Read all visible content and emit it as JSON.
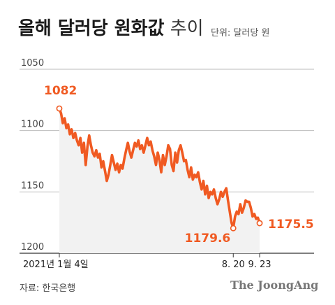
{
  "title_bold": "올해 달러당 원화값",
  "title_light": "추이",
  "unit": "단위: 달러당 원",
  "source": "자료: 한국은행",
  "brand": "The JoongAng",
  "colors": {
    "line": "#f05a22",
    "fill": "#f2f2f2",
    "grid": "#bbbbbb",
    "axis": "#333333"
  },
  "chart_data": {
    "type": "area",
    "ylabel": "",
    "xlabel": "",
    "ylim": [
      1050,
      1200
    ],
    "y_reversed": true,
    "yticks": [
      1050,
      1100,
      1150,
      1200
    ],
    "ytick_labels": [
      "1050",
      "1100",
      "1150",
      "1200"
    ],
    "xtick_labels": [
      "2021년 1월 4일",
      "8. 20",
      "9. 23"
    ],
    "annotations": [
      {
        "date": "2021-01-04",
        "value": 1082,
        "label": "1082"
      },
      {
        "date": "2021-08-20",
        "value": 1179.6,
        "label": "1179.6"
      },
      {
        "date": "2021-09-23",
        "value": 1175.5,
        "label": "1175.5"
      }
    ],
    "series": [
      {
        "values": [
          1082,
          1086,
          1094,
          1090,
          1098,
          1095,
          1103,
          1099,
          1106,
          1102,
          1108,
          1112,
          1106,
          1118,
          1110,
          1128,
          1113,
          1104,
          1112,
          1118,
          1121,
          1116,
          1122,
          1119,
          1130,
          1125,
          1133,
          1141,
          1136,
          1128,
          1120,
          1126,
          1132,
          1127,
          1134,
          1128,
          1131,
          1123,
          1116,
          1110,
          1117,
          1122,
          1116,
          1110,
          1113,
          1108,
          1115,
          1112,
          1118,
          1112,
          1106,
          1112,
          1109,
          1116,
          1121,
          1128,
          1118,
          1124,
          1134,
          1120,
          1128,
          1121,
          1112,
          1115,
          1128,
          1133,
          1118,
          1126,
          1116,
          1112,
          1118,
          1125,
          1124,
          1132,
          1138,
          1130,
          1140,
          1136,
          1138,
          1134,
          1142,
          1148,
          1141,
          1152,
          1145,
          1155,
          1150,
          1152,
          1148,
          1155,
          1160,
          1156,
          1150,
          1154,
          1150,
          1147,
          1157,
          1166,
          1175,
          1179.6,
          1170,
          1166,
          1168,
          1160,
          1167,
          1163,
          1157,
          1158,
          1158,
          1163,
          1170,
          1168,
          1172,
          1171,
          1175.5
        ]
      }
    ]
  }
}
